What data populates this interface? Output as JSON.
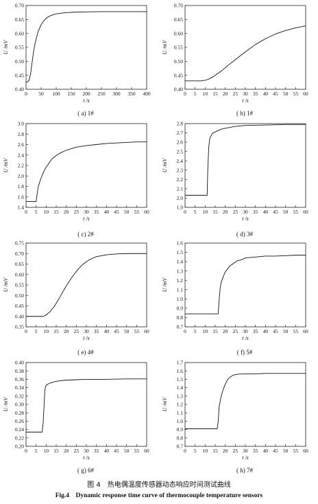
{
  "figure": {
    "title_cn": "图 4　热电偶温度传感器动态响应时间测试曲线",
    "title_en": "Fig.4　Dynamic response time curve of thermocouple temperature sensors"
  },
  "chart_data": [
    {
      "id": "a",
      "type": "line",
      "caption": "( a) 1#",
      "xlabel": "t /s",
      "ylabel": "U /mV",
      "xlim": [
        0,
        400
      ],
      "ylim": [
        0.4,
        0.7
      ],
      "xticks": [
        "0",
        "50",
        "100",
        "150",
        "200",
        "250",
        "300",
        "350",
        "400"
      ],
      "yticks": [
        "0.40",
        "0.45",
        "0.50",
        "0.55",
        "0.60",
        "0.65",
        "0.70"
      ],
      "series": [
        {
          "x": [
            0,
            5,
            10,
            15,
            20,
            25,
            30,
            40,
            50,
            60,
            70,
            80,
            90,
            100,
            120,
            140,
            160,
            200,
            250,
            300,
            350,
            400
          ],
          "y": [
            0.425,
            0.427,
            0.432,
            0.455,
            0.495,
            0.535,
            0.565,
            0.607,
            0.631,
            0.647,
            0.657,
            0.663,
            0.667,
            0.67,
            0.673,
            0.675,
            0.676,
            0.677,
            0.678,
            0.678,
            0.678,
            0.678
          ]
        }
      ]
    },
    {
      "id": "b",
      "type": "line",
      "caption": "( b) 1#",
      "xlabel": "t /s",
      "ylabel": "U /mV",
      "xlim": [
        0,
        60
      ],
      "ylim": [
        0.4,
        0.7
      ],
      "xticks": [
        "0",
        "5",
        "10",
        "15",
        "20",
        "25",
        "30",
        "35",
        "40",
        "45",
        "50",
        "55",
        "60"
      ],
      "yticks": [
        "0.40",
        "0.45",
        "0.50",
        "0.55",
        "0.60",
        "0.65",
        "0.70"
      ],
      "series": [
        {
          "x": [
            0,
            5,
            8,
            10,
            12,
            14,
            16,
            18,
            20,
            22,
            25,
            30,
            35,
            40,
            45,
            50,
            55,
            60
          ],
          "y": [
            0.43,
            0.43,
            0.43,
            0.432,
            0.437,
            0.445,
            0.455,
            0.465,
            0.477,
            0.489,
            0.506,
            0.534,
            0.56,
            0.581,
            0.598,
            0.61,
            0.62,
            0.627
          ]
        }
      ]
    },
    {
      "id": "c",
      "type": "line",
      "caption": "( c) 2#",
      "xlabel": "t /s",
      "ylabel": "U /mV",
      "xlim": [
        0,
        60
      ],
      "ylim": [
        1.4,
        3.0
      ],
      "xticks": [
        "0",
        "5",
        "10",
        "15",
        "20",
        "25",
        "30",
        "35",
        "40",
        "45",
        "50",
        "55",
        "60"
      ],
      "yticks": [
        "1.4",
        "1.6",
        "1.8",
        "2.0",
        "2.2",
        "2.4",
        "2.6",
        "2.8",
        "3.0"
      ],
      "series": [
        {
          "x": [
            0,
            4,
            5,
            5.3,
            6,
            7,
            8,
            9,
            10,
            11,
            12,
            13,
            15,
            17,
            20,
            25,
            30,
            35,
            40,
            45,
            50,
            55,
            60
          ],
          "y": [
            1.51,
            1.51,
            1.51,
            1.6,
            1.78,
            1.91,
            2.01,
            2.1,
            2.17,
            2.22,
            2.28,
            2.33,
            2.39,
            2.44,
            2.49,
            2.55,
            2.58,
            2.6,
            2.62,
            2.63,
            2.64,
            2.65,
            2.65
          ]
        }
      ]
    },
    {
      "id": "d",
      "type": "line",
      "caption": "( d) 3#",
      "xlabel": "t /s",
      "ylabel": "U /mV",
      "xlim": [
        0,
        60
      ],
      "ylim": [
        1.9,
        2.8
      ],
      "xticks": [
        "0",
        "5",
        "10",
        "15",
        "20",
        "25",
        "30",
        "35",
        "40",
        "45",
        "50",
        "55",
        "60"
      ],
      "yticks": [
        "1.9",
        "2.0",
        "2.1",
        "2.2",
        "2.3",
        "2.4",
        "2.5",
        "2.6",
        "2.7",
        "2.8"
      ],
      "series": [
        {
          "x": [
            0,
            5,
            10,
            11,
            11.3,
            11.8,
            12.3,
            13,
            13.5,
            14,
            15,
            16,
            18,
            20,
            25,
            30,
            40,
            50,
            60
          ],
          "y": [
            2.03,
            2.03,
            2.03,
            2.03,
            2.3,
            2.55,
            2.64,
            2.67,
            2.69,
            2.7,
            2.71,
            2.72,
            2.74,
            2.75,
            2.77,
            2.78,
            2.785,
            2.79,
            2.79
          ]
        }
      ]
    },
    {
      "id": "e",
      "type": "line",
      "caption": "( e) 4#",
      "xlabel": "t /s",
      "ylabel": "U /mV",
      "xlim": [
        0,
        60
      ],
      "ylim": [
        0.35,
        0.75
      ],
      "xticks": [
        "0",
        "5",
        "10",
        "15",
        "20",
        "25",
        "30",
        "35",
        "40",
        "45",
        "50",
        "55",
        "60"
      ],
      "yticks": [
        "0.35",
        "0.40",
        "0.45",
        "0.50",
        "0.55",
        "0.60",
        "0.65",
        "0.70",
        "0.75"
      ],
      "series": [
        {
          "x": [
            0,
            5,
            8,
            9,
            10,
            12,
            14,
            16,
            18,
            20,
            22,
            24,
            26,
            28,
            30,
            32,
            35,
            40,
            45,
            50,
            55,
            60
          ],
          "y": [
            0.4,
            0.4,
            0.4,
            0.402,
            0.407,
            0.423,
            0.447,
            0.478,
            0.512,
            0.545,
            0.575,
            0.602,
            0.626,
            0.646,
            0.661,
            0.673,
            0.685,
            0.694,
            0.698,
            0.7,
            0.7,
            0.7
          ]
        }
      ]
    },
    {
      "id": "f",
      "type": "line",
      "caption": "( f) 5#",
      "xlabel": "t /s",
      "ylabel": "U /mV",
      "xlim": [
        0,
        60
      ],
      "ylim": [
        0.7,
        1.6
      ],
      "xticks": [
        "0",
        "5",
        "10",
        "15",
        "20",
        "25",
        "30",
        "35",
        "40",
        "45",
        "50",
        "55",
        "60"
      ],
      "yticks": [
        "0.7",
        "0.8",
        "0.9",
        "1.0",
        "1.1",
        "1.2",
        "1.3",
        "1.4",
        "1.5",
        "1.6"
      ],
      "series": [
        {
          "x": [
            0,
            5,
            10,
            15,
            16.5,
            17,
            17.5,
            18,
            19,
            20,
            21,
            22,
            24,
            26,
            28,
            30,
            35,
            40,
            45,
            50,
            55,
            60
          ],
          "y": [
            0.84,
            0.84,
            0.84,
            0.84,
            0.84,
            1.0,
            1.12,
            1.18,
            1.24,
            1.29,
            1.32,
            1.35,
            1.38,
            1.41,
            1.42,
            1.44,
            1.45,
            1.46,
            1.46,
            1.465,
            1.47,
            1.47
          ]
        }
      ]
    },
    {
      "id": "g",
      "type": "line",
      "caption": "( g) 6#",
      "xlabel": "t /s",
      "ylabel": "U /mV",
      "xlim": [
        0,
        60
      ],
      "ylim": [
        0.2,
        0.4
      ],
      "xticks": [
        "0",
        "5",
        "10",
        "15",
        "20",
        "25",
        "30",
        "35",
        "40",
        "45",
        "50",
        "55",
        "60"
      ],
      "yticks": [
        "0.20",
        "0.22",
        "0.24",
        "0.26",
        "0.28",
        "0.30",
        "0.32",
        "0.34",
        "0.36",
        "0.38",
        "0.40"
      ],
      "series": [
        {
          "x": [
            0,
            5,
            8,
            8.5,
            9,
            9.3,
            9.7,
            10,
            11,
            12,
            14,
            16,
            20,
            25,
            30,
            40,
            50,
            60
          ],
          "y": [
            0.234,
            0.234,
            0.234,
            0.255,
            0.3,
            0.332,
            0.342,
            0.346,
            0.349,
            0.351,
            0.354,
            0.356,
            0.358,
            0.359,
            0.36,
            0.36,
            0.361,
            0.361
          ]
        }
      ]
    },
    {
      "id": "h",
      "type": "line",
      "caption": "( h) 7#",
      "xlabel": "t /s",
      "ylabel": "U /mV",
      "xlim": [
        0,
        60
      ],
      "ylim": [
        0.7,
        1.7
      ],
      "xticks": [
        "0",
        "5",
        "10",
        "15",
        "20",
        "25",
        "30",
        "35",
        "40",
        "45",
        "50",
        "55",
        "60"
      ],
      "yticks": [
        "0.7",
        "0.8",
        "0.9",
        "1.0",
        "1.1",
        "1.2",
        "1.3",
        "1.4",
        "1.5",
        "1.6",
        "1.7"
      ],
      "series": [
        {
          "x": [
            0,
            5,
            10,
            15,
            16,
            16.5,
            17,
            17.5,
            18,
            19,
            20,
            21,
            22,
            24,
            26,
            30,
            35,
            40,
            50,
            60
          ],
          "y": [
            0.91,
            0.91,
            0.91,
            0.91,
            0.91,
            1.0,
            1.18,
            1.24,
            1.3,
            1.38,
            1.44,
            1.49,
            1.52,
            1.55,
            1.56,
            1.565,
            1.565,
            1.57,
            1.57,
            1.57
          ]
        }
      ]
    }
  ]
}
